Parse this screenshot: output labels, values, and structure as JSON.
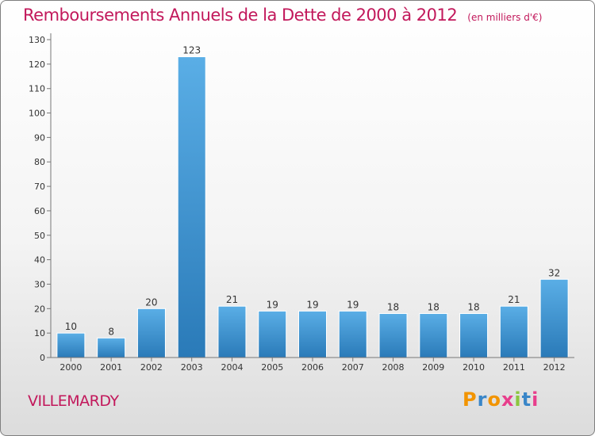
{
  "header": {
    "title": "Remboursements Annuels de la Dette de 2000 à 2012",
    "unit": "(en milliers d'€)"
  },
  "footer": {
    "commune": "VILLEMARDY",
    "brand": "Proxiti"
  },
  "colors": {
    "title": "#c2185b",
    "bar_light": "#5aaee6",
    "bar_dark": "#2a7ab8",
    "brand_letters": [
      "#f29400",
      "#3a86c8",
      "#f29400",
      "#e83e8c",
      "#8cc63f",
      "#3a86c8",
      "#e83e8c"
    ]
  },
  "chart_data": {
    "type": "bar",
    "categories": [
      "2000",
      "2001",
      "2002",
      "2003",
      "2004",
      "2005",
      "2006",
      "2007",
      "2008",
      "2009",
      "2010",
      "2011",
      "2012"
    ],
    "values": [
      10,
      8,
      20,
      123,
      21,
      19,
      19,
      19,
      18,
      18,
      18,
      21,
      32
    ],
    "data_labels": [
      "10",
      "8",
      "20",
      "123",
      "21",
      "19",
      "19",
      "19",
      "18",
      "18",
      "18",
      "21",
      "32"
    ],
    "y_ticks": [
      "0",
      "10",
      "20",
      "30",
      "40",
      "50",
      "60",
      "70",
      "80",
      "90",
      "100",
      "110",
      "120",
      "130"
    ],
    "ylim": [
      0,
      130
    ],
    "grid": false,
    "legend": "none",
    "xlabel": "",
    "ylabel": ""
  }
}
